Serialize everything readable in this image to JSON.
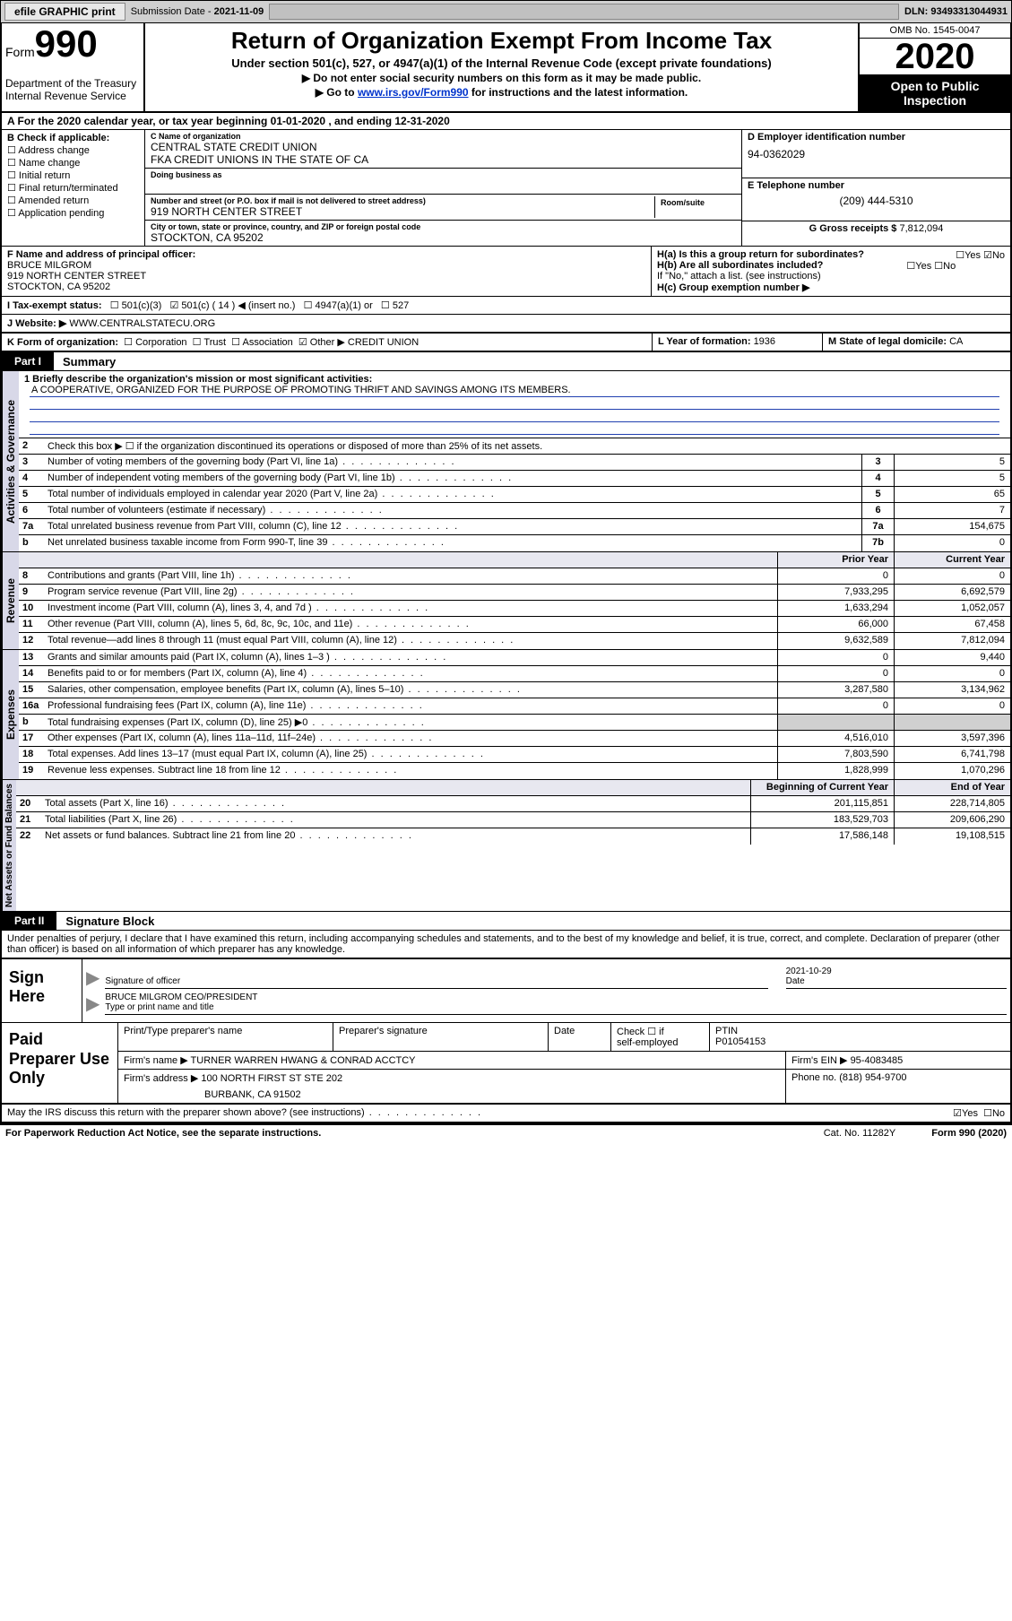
{
  "topbar": {
    "efile": "efile GRAPHIC print",
    "subdate_label": "Submission Date - ",
    "subdate": "2021-11-09",
    "dln": "DLN: 93493313044931"
  },
  "header": {
    "form_word": "Form",
    "form_num": "990",
    "dept": "Department of the Treasury\nInternal Revenue Service",
    "title": "Return of Organization Exempt From Income Tax",
    "sub1": "Under section 501(c), 527, or 4947(a)(1) of the Internal Revenue Code (except private foundations)",
    "sub2": "Do not enter social security numbers on this form as it may be made public.",
    "sub3_pre": "Go to ",
    "sub3_link": "www.irs.gov/Form990",
    "sub3_post": " for instructions and the latest information.",
    "omb": "OMB No. 1545-0047",
    "year": "2020",
    "open": "Open to Public Inspection",
    "cal": "A For the 2020 calendar year, or tax year beginning 01-01-2020   , and ending 12-31-2020"
  },
  "boxB": {
    "title": "B Check if applicable:",
    "items": [
      "Address change",
      "Name change",
      "Initial return",
      "Final return/terminated",
      "Amended return",
      "Application pending"
    ]
  },
  "boxC": {
    "name_lab": "C Name of organization",
    "name1": "CENTRAL STATE CREDIT UNION",
    "name2": "FKA CREDIT UNIONS IN THE STATE OF CA",
    "dba_lab": "Doing business as",
    "addr_lab": "Number and street (or P.O. box if mail is not delivered to street address)",
    "room_lab": "Room/suite",
    "addr": "919 NORTH CENTER STREET",
    "city_lab": "City or town, state or province, country, and ZIP or foreign postal code",
    "city": "STOCKTON, CA  95202"
  },
  "boxD": {
    "ein_lab": "D Employer identification number",
    "ein": "94-0362029",
    "tel_lab": "E Telephone number",
    "tel": "(209) 444-5310",
    "gross_lab": "G Gross receipts $ ",
    "gross": "7,812,094"
  },
  "boxF": {
    "lab": "F  Name and address of principal officer:",
    "name": "BRUCE MILGROM",
    "addr1": "919 NORTH CENTER STREET",
    "addr2": "STOCKTON, CA  95202"
  },
  "boxH": {
    "a": "H(a)  Is this a group return for subordinates?",
    "b": "H(b)  Are all subordinates included?",
    "note": "If \"No,\" attach a list. (see instructions)",
    "c": "H(c)  Group exemption number ▶",
    "yes": "Yes",
    "no": "No"
  },
  "boxI": {
    "lab": "I    Tax-exempt status:",
    "opts": [
      "501(c)(3)",
      "501(c) ( 14 ) ◀ (insert no.)",
      "4947(a)(1) or",
      "527"
    ]
  },
  "boxJ": {
    "lab": "J    Website: ▶",
    "val": "WWW.CENTRALSTATECU.ORG"
  },
  "boxK": {
    "lab": "K Form of organization:",
    "opts": [
      "Corporation",
      "Trust",
      "Association",
      "Other ▶"
    ],
    "other": "CREDIT UNION"
  },
  "boxL": {
    "lab": "L Year of formation: ",
    "val": "1936"
  },
  "boxM": {
    "lab": "M State of legal domicile: ",
    "val": "CA"
  },
  "part1": {
    "tag": "Part I",
    "title": "Summary",
    "mission_lab": "1   Briefly describe the organization's mission or most significant activities:",
    "mission": "A COOPERATIVE, ORGANIZED FOR THE PURPOSE OF PROMOTING THRIFT AND SAVINGS AMONG ITS MEMBERS.",
    "line2": "Check this box ▶ ☐  if the organization discontinued its operations or disposed of more than 25% of its net assets.",
    "prior_hdr": "Prior Year",
    "curr_hdr": "Current Year",
    "begin_hdr": "Beginning of Current Year",
    "end_hdr": "End of Year"
  },
  "gov_lines": [
    {
      "n": "3",
      "t": "Number of voting members of the governing body (Part VI, line 1a)",
      "b": "3",
      "v": "5"
    },
    {
      "n": "4",
      "t": "Number of independent voting members of the governing body (Part VI, line 1b)",
      "b": "4",
      "v": "5"
    },
    {
      "n": "5",
      "t": "Total number of individuals employed in calendar year 2020 (Part V, line 2a)",
      "b": "5",
      "v": "65"
    },
    {
      "n": "6",
      "t": "Total number of volunteers (estimate if necessary)",
      "b": "6",
      "v": "7"
    },
    {
      "n": "7a",
      "t": "Total unrelated business revenue from Part VIII, column (C), line 12",
      "b": "7a",
      "v": "154,675"
    },
    {
      "n": "b",
      "t": "Net unrelated business taxable income from Form 990-T, line 39",
      "b": "7b",
      "v": "0"
    }
  ],
  "rev_lines": [
    {
      "n": "8",
      "t": "Contributions and grants (Part VIII, line 1h)",
      "p": "0",
      "c": "0"
    },
    {
      "n": "9",
      "t": "Program service revenue (Part VIII, line 2g)",
      "p": "7,933,295",
      "c": "6,692,579"
    },
    {
      "n": "10",
      "t": "Investment income (Part VIII, column (A), lines 3, 4, and 7d )",
      "p": "1,633,294",
      "c": "1,052,057"
    },
    {
      "n": "11",
      "t": "Other revenue (Part VIII, column (A), lines 5, 6d, 8c, 9c, 10c, and 11e)",
      "p": "66,000",
      "c": "67,458"
    },
    {
      "n": "12",
      "t": "Total revenue—add lines 8 through 11 (must equal Part VIII, column (A), line 12)",
      "p": "9,632,589",
      "c": "7,812,094"
    }
  ],
  "exp_lines": [
    {
      "n": "13",
      "t": "Grants and similar amounts paid (Part IX, column (A), lines 1–3 )",
      "p": "0",
      "c": "9,440"
    },
    {
      "n": "14",
      "t": "Benefits paid to or for members (Part IX, column (A), line 4)",
      "p": "0",
      "c": "0"
    },
    {
      "n": "15",
      "t": "Salaries, other compensation, employee benefits (Part IX, column (A), lines 5–10)",
      "p": "3,287,580",
      "c": "3,134,962"
    },
    {
      "n": "16a",
      "t": "Professional fundraising fees (Part IX, column (A), line 11e)",
      "p": "0",
      "c": "0"
    },
    {
      "n": "b",
      "t": "Total fundraising expenses (Part IX, column (D), line 25) ▶0",
      "p": "",
      "c": "",
      "shade": true
    },
    {
      "n": "17",
      "t": "Other expenses (Part IX, column (A), lines 11a–11d, 11f–24e)",
      "p": "4,516,010",
      "c": "3,597,396"
    },
    {
      "n": "18",
      "t": "Total expenses. Add lines 13–17 (must equal Part IX, column (A), line 25)",
      "p": "7,803,590",
      "c": "6,741,798"
    },
    {
      "n": "19",
      "t": "Revenue less expenses. Subtract line 18 from line 12",
      "p": "1,828,999",
      "c": "1,070,296"
    }
  ],
  "net_lines": [
    {
      "n": "20",
      "t": "Total assets (Part X, line 16)",
      "p": "201,115,851",
      "c": "228,714,805"
    },
    {
      "n": "21",
      "t": "Total liabilities (Part X, line 26)",
      "p": "183,529,703",
      "c": "209,606,290"
    },
    {
      "n": "22",
      "t": "Net assets or fund balances. Subtract line 21 from line 20",
      "p": "17,586,148",
      "c": "19,108,515"
    }
  ],
  "vlabels": {
    "gov": "Activities & Governance",
    "rev": "Revenue",
    "exp": "Expenses",
    "net": "Net Assets or Fund Balances"
  },
  "part2": {
    "tag": "Part II",
    "title": "Signature Block",
    "decl": "Under penalties of perjury, I declare that I have examined this return, including accompanying schedules and statements, and to the best of my knowledge and belief, it is true, correct, and complete. Declaration of preparer (other than officer) is based on all information of which preparer has any knowledge."
  },
  "sign": {
    "here": "Sign Here",
    "sig_lab": "Signature of officer",
    "date_lab": "Date",
    "date": "2021-10-29",
    "name": "BRUCE MILGROM  CEO/PRESIDENT",
    "name_lab": "Type or print name and title"
  },
  "prep": {
    "here": "Paid Preparer Use Only",
    "h1": "Print/Type preparer's name",
    "h2": "Preparer's signature",
    "h3": "Date",
    "h4_a": "Check ☐ if",
    "h4_b": "self-employed",
    "h5": "PTIN",
    "ptin": "P01054153",
    "firm_lab": "Firm's name    ▶",
    "firm": "TURNER WARREN HWANG & CONRAD ACCTCY",
    "ein_lab": "Firm's EIN ▶",
    "ein": "95-4083485",
    "addr_lab": "Firm's address ▶",
    "addr1": "100 NORTH FIRST ST STE 202",
    "addr2": "BURBANK, CA  91502",
    "phone_lab": "Phone no. ",
    "phone": "(818) 954-9700"
  },
  "discuss": {
    "text": "May the IRS discuss this return with the preparer shown above? (see instructions)",
    "yes": "Yes",
    "no": "No"
  },
  "footer": {
    "left": "For Paperwork Reduction Act Notice, see the separate instructions.",
    "mid": "Cat. No. 11282Y",
    "right": "Form 990 (2020)"
  }
}
